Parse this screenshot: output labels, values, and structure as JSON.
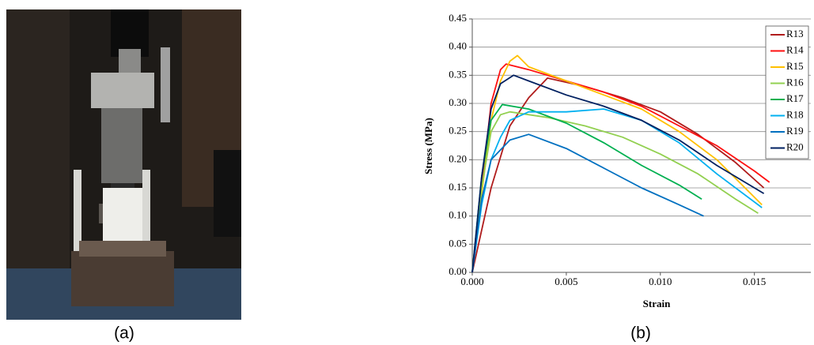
{
  "panel_labels": [
    "(a)",
    "(b)"
  ],
  "chart_data": {
    "type": "line",
    "x_label": "Strain",
    "y_label": "Stress (MPa)",
    "xlim": [
      0,
      0.018
    ],
    "ylim": [
      0,
      0.45
    ],
    "xticks": [
      {
        "value": 0,
        "label": "0.000"
      },
      {
        "value": 0.005,
        "label": "0.005"
      },
      {
        "value": 0.01,
        "label": "0.010"
      },
      {
        "value": 0.015,
        "label": "0.015"
      }
    ],
    "yticks": [
      {
        "value": 0,
        "label": "0.00"
      },
      {
        "value": 0.05,
        "label": "0.05"
      },
      {
        "value": 0.1,
        "label": "0.10"
      },
      {
        "value": 0.15,
        "label": "0.15"
      },
      {
        "value": 0.2,
        "label": "0.20"
      },
      {
        "value": 0.25,
        "label": "0.25"
      },
      {
        "value": 0.3,
        "label": "0.30"
      },
      {
        "value": 0.35,
        "label": "0.35"
      },
      {
        "value": 0.4,
        "label": "0.40"
      },
      {
        "value": 0.45,
        "label": "0.45"
      }
    ],
    "grid": true,
    "legend": "upper right",
    "series": [
      {
        "name": "R13",
        "color": "#b01c1c",
        "x": [
          0,
          0.001,
          0.002,
          0.003,
          0.004,
          0.006,
          0.008,
          0.01,
          0.012,
          0.014,
          0.0155
        ],
        "values": [
          0,
          0.15,
          0.26,
          0.31,
          0.345,
          0.33,
          0.31,
          0.285,
          0.245,
          0.195,
          0.15
        ]
      },
      {
        "name": "R14",
        "color": "#ff1010",
        "x": [
          0,
          0.0005,
          0.001,
          0.0015,
          0.0018,
          0.003,
          0.005,
          0.007,
          0.009,
          0.011,
          0.013,
          0.015,
          0.0158
        ],
        "values": [
          0,
          0.15,
          0.3,
          0.36,
          0.37,
          0.36,
          0.34,
          0.32,
          0.295,
          0.26,
          0.225,
          0.18,
          0.16
        ]
      },
      {
        "name": "R15",
        "color": "#ffc000",
        "x": [
          0,
          0.0005,
          0.001,
          0.0015,
          0.002,
          0.0024,
          0.003,
          0.005,
          0.007,
          0.009,
          0.011,
          0.013,
          0.0154
        ],
        "values": [
          0,
          0.14,
          0.27,
          0.34,
          0.375,
          0.385,
          0.365,
          0.34,
          0.315,
          0.29,
          0.25,
          0.2,
          0.12
        ]
      },
      {
        "name": "R16",
        "color": "#92d050",
        "x": [
          0,
          0.0005,
          0.001,
          0.0015,
          0.002,
          0.004,
          0.006,
          0.008,
          0.01,
          0.012,
          0.014,
          0.0152
        ],
        "values": [
          0,
          0.15,
          0.25,
          0.28,
          0.285,
          0.275,
          0.26,
          0.24,
          0.21,
          0.175,
          0.13,
          0.105
        ]
      },
      {
        "name": "R17",
        "color": "#00b050",
        "x": [
          0,
          0.0005,
          0.001,
          0.0016,
          0.003,
          0.005,
          0.007,
          0.009,
          0.011,
          0.0122
        ],
        "values": [
          0,
          0.17,
          0.27,
          0.298,
          0.29,
          0.265,
          0.23,
          0.19,
          0.155,
          0.13
        ]
      },
      {
        "name": "R18",
        "color": "#00b0f0",
        "x": [
          0,
          0.0005,
          0.001,
          0.0015,
          0.002,
          0.003,
          0.005,
          0.007,
          0.009,
          0.011,
          0.013,
          0.0154
        ],
        "values": [
          0,
          0.12,
          0.2,
          0.24,
          0.27,
          0.285,
          0.285,
          0.29,
          0.27,
          0.23,
          0.175,
          0.115
        ]
      },
      {
        "name": "R19",
        "color": "#0070c0",
        "x": [
          0,
          0.0005,
          0.001,
          0.002,
          0.003,
          0.005,
          0.007,
          0.009,
          0.011,
          0.0123
        ],
        "values": [
          0,
          0.13,
          0.2,
          0.235,
          0.245,
          0.22,
          0.185,
          0.15,
          0.12,
          0.1
        ]
      },
      {
        "name": "R20",
        "color": "#002060",
        "x": [
          0,
          0.0005,
          0.001,
          0.0015,
          0.0022,
          0.003,
          0.005,
          0.007,
          0.009,
          0.011,
          0.013,
          0.0155
        ],
        "values": [
          0,
          0.17,
          0.29,
          0.335,
          0.35,
          0.34,
          0.315,
          0.295,
          0.27,
          0.235,
          0.19,
          0.14
        ]
      }
    ]
  }
}
